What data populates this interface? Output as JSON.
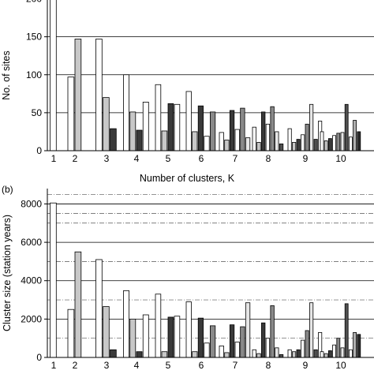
{
  "chart_data": [
    {
      "panel": "a",
      "type": "bar",
      "categories": [
        "1",
        "2",
        "3",
        "4",
        "5",
        "6",
        "7",
        "8",
        "9",
        "10"
      ],
      "xlabel": "Number of clusters, K",
      "ylabel": "No. of sites",
      "ylim": [
        0,
        240
      ],
      "yticks": [
        0,
        50,
        100,
        150,
        200
      ],
      "grid": "horizontal, solid",
      "fills": [
        "#ffffff",
        "#c8c8c8",
        "#3a3a3a",
        "#ffffff",
        "#8a8a8a",
        "#e6e6e6",
        "#505050",
        "#ffffff",
        "#b0b0b0",
        "#2e2e2e"
      ],
      "groups": [
        [
          260
        ],
        [
          97,
          147
        ],
        [
          147,
          70,
          29
        ],
        [
          100,
          51,
          27,
          64
        ],
        [
          87,
          26,
          62,
          61
        ],
        [
          78,
          25,
          59,
          19,
          51
        ],
        [
          24,
          14,
          53,
          28,
          56,
          17
        ],
        [
          31,
          11,
          51,
          35,
          58,
          25,
          9
        ],
        [
          29,
          11,
          15,
          21,
          35,
          61,
          15,
          39
        ],
        [
          25,
          13,
          16,
          20,
          23,
          24,
          61,
          18,
          40,
          25
        ]
      ]
    },
    {
      "panel": "b",
      "panel_label": "(b)",
      "type": "bar",
      "categories": [
        "1",
        "2",
        "3",
        "4",
        "5",
        "6",
        "7",
        "8",
        "9",
        "10"
      ],
      "ylabel": "Cluster size (station years)",
      "ylim": [
        0,
        8800
      ],
      "yticks": [
        0,
        2000,
        4000,
        6000,
        8000
      ],
      "grid": "major solid, minor dash-dot",
      "fills": [
        "#ffffff",
        "#c8c8c8",
        "#3a3a3a",
        "#ffffff",
        "#8a8a8a",
        "#e6e6e6",
        "#505050",
        "#ffffff",
        "#b0b0b0",
        "#2e2e2e"
      ],
      "groups": [
        [
          8050
        ],
        [
          2500,
          5500
        ],
        [
          5100,
          2650,
          400
        ],
        [
          3480,
          2000,
          300,
          2220
        ],
        [
          3300,
          300,
          2100,
          2150
        ],
        [
          2900,
          300,
          2050,
          750,
          1650
        ],
        [
          600,
          250,
          1700,
          800,
          1600,
          2850
        ],
        [
          400,
          200,
          1800,
          1000,
          2700,
          500,
          150
        ],
        [
          400,
          300,
          400,
          900,
          1400,
          2850,
          400,
          1300
        ],
        [
          300,
          200,
          350,
          650,
          1000,
          500,
          2800,
          400,
          1300,
          1200
        ]
      ]
    }
  ]
}
